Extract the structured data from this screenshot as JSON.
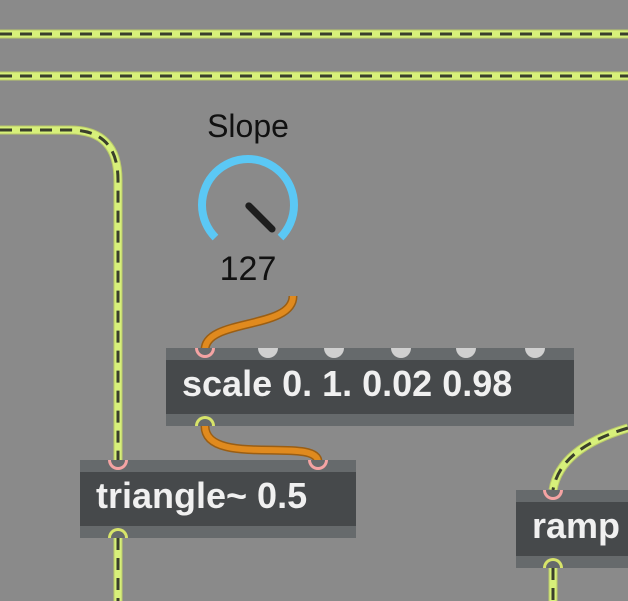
{
  "dial": {
    "label": "Slope",
    "value": "127",
    "normalized": 1.0,
    "arc_color": "#5bc8f5",
    "needle_color": "#1e1e1e"
  },
  "objects": {
    "scale": {
      "text": "scale 0. 1. 0.02 0.98",
      "inlets": 6,
      "outlets": 1
    },
    "triangle": {
      "text": "triangle~ 0.5",
      "inlets": 2,
      "outlets": 1
    },
    "ramp": {
      "text": "ramp"
    }
  },
  "colors": {
    "background": "#8a8a8a",
    "object_body": "#46494b",
    "object_bar": "#666a6c",
    "signal_cord": "#d7f07a",
    "signal_dash": "#3a3f2c",
    "control_cord": "#e08a1e",
    "inlet_hot": "#f4a3a3",
    "outlet": "#d7e46a"
  }
}
